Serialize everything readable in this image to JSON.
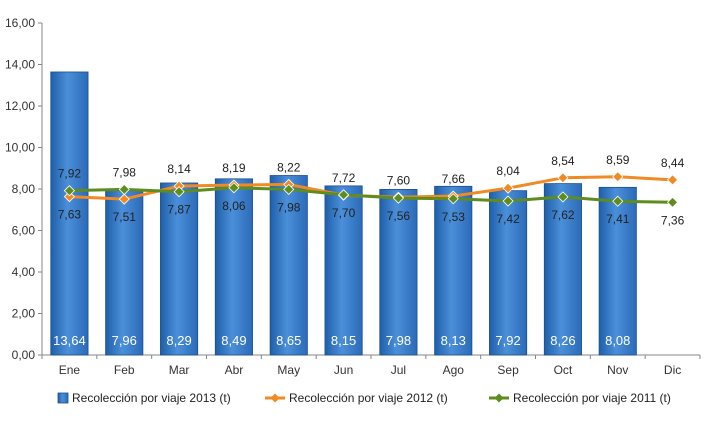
{
  "chart_data": {
    "type": "bar",
    "categories": [
      "Ene",
      "Feb",
      "Mar",
      "Abr",
      "May",
      "Jun",
      "Jul",
      "Ago",
      "Sep",
      "Oct",
      "Nov",
      "Dic"
    ],
    "ylim": [
      0,
      16
    ],
    "y_ticks": [
      "0,00",
      "2,00",
      "4,00",
      "6,00",
      "8,00",
      "10,00",
      "12,00",
      "14,00",
      "16,00"
    ],
    "grid": false,
    "legend_position": "bottom",
    "bars": {
      "name": "Recolección por viaje 2013 (t)",
      "values": [
        13.64,
        7.96,
        8.29,
        8.49,
        8.65,
        8.15,
        7.98,
        8.13,
        7.92,
        8.26,
        8.08,
        null
      ],
      "labels": [
        "13,64",
        "7,96",
        "8,29",
        "8,49",
        "8,65",
        "8,15",
        "7,98",
        "8,13",
        "7,92",
        "8,26",
        "8,08",
        ""
      ],
      "color": "#2E73C6"
    },
    "series": [
      {
        "name": "Recolección por viaje 2012 (t)",
        "type": "line",
        "values": [
          7.63,
          7.51,
          8.14,
          8.19,
          8.22,
          7.7,
          7.6,
          7.66,
          8.04,
          8.54,
          8.59,
          8.44
        ],
        "labels": [
          "7,63",
          "7,51",
          "8,14",
          "8,19",
          "8,22",
          "7,70",
          "7,60",
          "7,66",
          "8,04",
          "8,54",
          "8,59",
          "8,44"
        ],
        "color": "#F08A24"
      },
      {
        "name": "Recolección por viaje 2011 (t)",
        "type": "line",
        "values": [
          7.92,
          7.98,
          7.87,
          8.06,
          7.98,
          7.72,
          7.56,
          7.53,
          7.42,
          7.62,
          7.41,
          7.36
        ],
        "labels": [
          "7,92",
          "7,98",
          "7,87",
          "8,06",
          "7,98",
          "7,72",
          "7,56",
          "7,53",
          "7,42",
          "7,62",
          "7,41",
          "7,36"
        ],
        "color": "#5E8C1F"
      }
    ]
  }
}
